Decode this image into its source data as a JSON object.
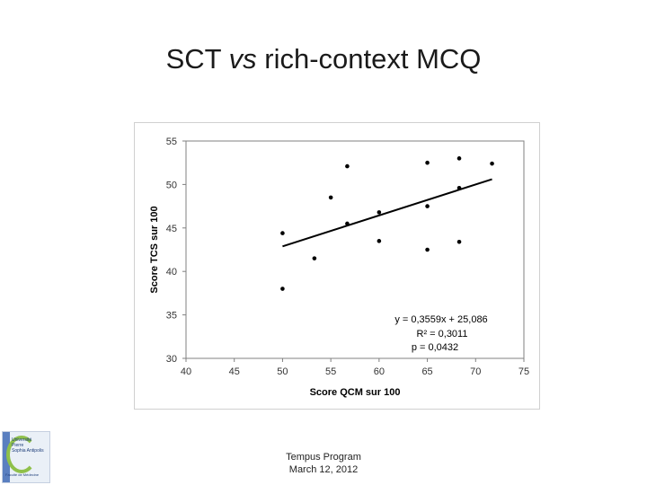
{
  "slide": {
    "title_prefix": "SCT ",
    "title_italic": "vs",
    "title_suffix": " rich-context MCQ",
    "footer_line1": "Tempus Program",
    "footer_line2": "March 12, 2012"
  },
  "logo": {
    "text_lines": [
      "Université",
      "Pierre",
      "Sophia Antipolis"
    ],
    "faculty": "Faculté de Médecine"
  },
  "chart_data": {
    "type": "scatter",
    "xlabel": "Score QCM sur 100",
    "ylabel": "Score TCS sur 100",
    "xlim": [
      40,
      75
    ],
    "ylim": [
      30,
      55
    ],
    "xticks": [
      40,
      45,
      50,
      55,
      60,
      65,
      70,
      75
    ],
    "yticks": [
      30,
      35,
      40,
      45,
      50,
      55
    ],
    "grid": false,
    "legend": "none",
    "point_color": "#000000",
    "series": [
      {
        "points": [
          [
            50,
            44.4
          ],
          [
            50,
            38
          ],
          [
            53.3,
            41.5
          ],
          [
            55,
            48.5
          ],
          [
            56.7,
            52.1
          ],
          [
            56.7,
            45.5
          ],
          [
            60,
            46.8
          ],
          [
            60,
            43.5
          ],
          [
            65,
            52.5
          ],
          [
            65,
            47.5
          ],
          [
            65,
            42.5
          ],
          [
            68.3,
            53
          ],
          [
            68.3,
            49.6
          ],
          [
            68.3,
            43.4
          ],
          [
            71.7,
            52.4
          ]
        ]
      }
    ],
    "trendline": {
      "slope": 0.3559,
      "intercept": 25.086,
      "x_range": [
        50,
        71.7
      ]
    },
    "annotations": [
      "y = 0,3559x + 25,086",
      "R² = 0,3011",
      "p = 0,0432"
    ]
  }
}
